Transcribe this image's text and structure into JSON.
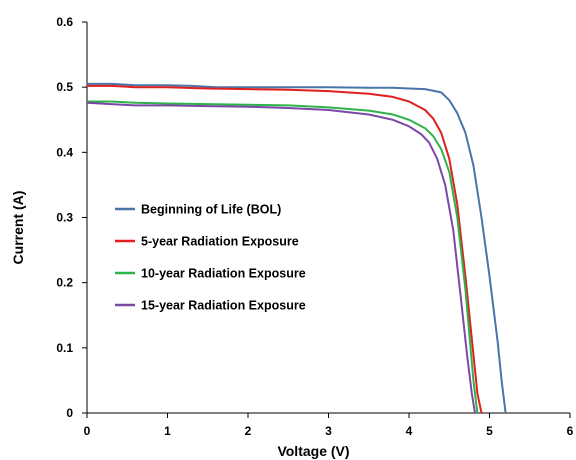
{
  "chart_data": {
    "type": "line",
    "title": "",
    "xlabel": "Voltage (V)",
    "ylabel": "Current (A)",
    "xlim": [
      0,
      6
    ],
    "ylim": [
      0,
      0.6
    ],
    "xticks": [
      0,
      1,
      2,
      3,
      4,
      5,
      6
    ],
    "yticks": [
      0,
      0.1,
      0.2,
      0.3,
      0.4,
      0.5,
      0.6
    ],
    "x_tick_labels": [
      "0",
      "1",
      "2",
      "3",
      "4",
      "5",
      "6"
    ],
    "y_tick_labels": [
      "0",
      "0.1",
      "0.2",
      "0.3",
      "0.4",
      "0.5",
      "0.6"
    ],
    "grid": false,
    "legend_position": "center-left",
    "series": [
      {
        "name": "Beginning of Life (BOL)",
        "color": "#4a74a8",
        "x": [
          0,
          0.3,
          0.6,
          1.0,
          1.3,
          1.6,
          2.0,
          2.5,
          3.0,
          3.5,
          3.8,
          4.0,
          4.2,
          4.4,
          4.5,
          4.6,
          4.7,
          4.8,
          4.9,
          5.0,
          5.1,
          5.15,
          5.2
        ],
        "y": [
          0.505,
          0.505,
          0.503,
          0.503,
          0.502,
          0.5,
          0.5,
          0.5,
          0.5,
          0.499,
          0.499,
          0.498,
          0.497,
          0.492,
          0.48,
          0.46,
          0.43,
          0.38,
          0.3,
          0.21,
          0.11,
          0.05,
          0.0
        ]
      },
      {
        "name": "5-year Radiation Exposure",
        "color": "#e0201e",
        "x": [
          0,
          0.3,
          0.6,
          1.0,
          1.5,
          2.0,
          2.5,
          3.0,
          3.5,
          3.8,
          4.0,
          4.2,
          4.3,
          4.4,
          4.5,
          4.6,
          4.7,
          4.8,
          4.85,
          4.9
        ],
        "y": [
          0.502,
          0.502,
          0.5,
          0.5,
          0.498,
          0.497,
          0.496,
          0.494,
          0.49,
          0.485,
          0.478,
          0.465,
          0.452,
          0.43,
          0.39,
          0.32,
          0.21,
          0.09,
          0.03,
          0.0
        ]
      },
      {
        "name": "10-year Radiation Exposure",
        "color": "#2db34a",
        "x": [
          0,
          0.3,
          0.6,
          1.0,
          1.5,
          2.0,
          2.5,
          3.0,
          3.5,
          3.8,
          4.0,
          4.2,
          4.3,
          4.4,
          4.5,
          4.6,
          4.7,
          4.75,
          4.8,
          4.85
        ],
        "y": [
          0.478,
          0.478,
          0.476,
          0.475,
          0.474,
          0.473,
          0.472,
          0.469,
          0.464,
          0.458,
          0.45,
          0.437,
          0.425,
          0.405,
          0.37,
          0.3,
          0.19,
          0.12,
          0.05,
          0.0
        ]
      },
      {
        "name": "15-year Radiation Exposure",
        "color": "#7b48a8",
        "x": [
          0,
          0.3,
          0.6,
          1.0,
          1.5,
          2.0,
          2.5,
          3.0,
          3.5,
          3.8,
          4.0,
          4.15,
          4.25,
          4.35,
          4.45,
          4.55,
          4.65,
          4.72,
          4.78,
          4.82
        ],
        "y": [
          0.476,
          0.474,
          0.472,
          0.472,
          0.471,
          0.47,
          0.468,
          0.465,
          0.458,
          0.45,
          0.44,
          0.428,
          0.415,
          0.39,
          0.35,
          0.28,
          0.17,
          0.09,
          0.03,
          0.0
        ]
      }
    ]
  }
}
